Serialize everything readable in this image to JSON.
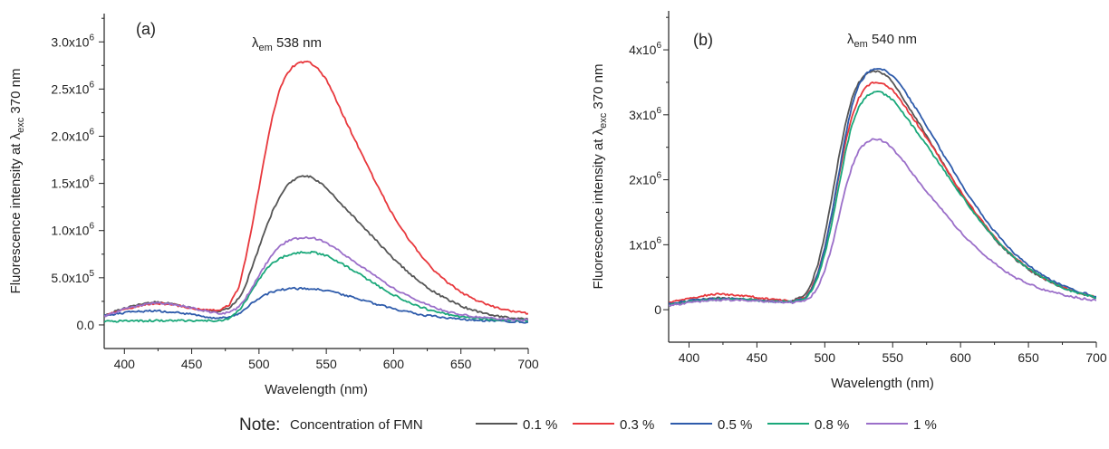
{
  "legend": {
    "note": "Note:",
    "title": "Concentration of FMN",
    "entries": [
      {
        "label": "0.1 %",
        "color": "#555555"
      },
      {
        "label": "0.3 %",
        "color": "#e8383d"
      },
      {
        "label": "0.5 %",
        "color": "#2e5bab"
      },
      {
        "label": "0.8 %",
        "color": "#1aa87a"
      },
      {
        "label": "1 %",
        "color": "#9b6fc9"
      }
    ]
  },
  "chart_data": [
    {
      "type": "line",
      "panel_label": "(a)",
      "annotation": {
        "lambda": "λ",
        "sub": "em",
        "text": " 538 nm"
      },
      "xlabel": "Wavelength (nm)",
      "ylabel": {
        "main": "Fluorescence intensity at λ",
        "sub": "exc",
        "tail": " 370 nm"
      },
      "xlim": [
        385,
        700
      ],
      "ylim": [
        -250000,
        3300000
      ],
      "xticks": [
        400,
        450,
        500,
        550,
        600,
        650,
        700
      ],
      "yticks": [
        {
          "value": 0,
          "mant": "0.0",
          "exp": ""
        },
        {
          "value": 500000,
          "mant": "5.0x10",
          "exp": "5"
        },
        {
          "value": 1000000,
          "mant": "1.0x10",
          "exp": "6"
        },
        {
          "value": 1500000,
          "mant": "1.5x10",
          "exp": "6"
        },
        {
          "value": 2000000,
          "mant": "2.0x10",
          "exp": "6"
        },
        {
          "value": 2500000,
          "mant": "2.5x10",
          "exp": "6"
        },
        {
          "value": 3000000,
          "mant": "3.0x10",
          "exp": "6"
        }
      ],
      "x": [
        385,
        400,
        420,
        430,
        440,
        450,
        460,
        470,
        478,
        485,
        490,
        495,
        500,
        505,
        510,
        515,
        520,
        525,
        530,
        535,
        538,
        540,
        545,
        550,
        555,
        560,
        570,
        580,
        590,
        600,
        610,
        620,
        630,
        640,
        650,
        660,
        670,
        680,
        690,
        700
      ],
      "series": [
        {
          "name": "0.1 %",
          "color": "#555555",
          "values": [
            100000,
            180000,
            240000,
            235000,
            210000,
            180000,
            150000,
            140000,
            180000,
            280000,
            420000,
            620000,
            820000,
            1020000,
            1200000,
            1350000,
            1460000,
            1530000,
            1570000,
            1580000,
            1575000,
            1560000,
            1510000,
            1450000,
            1380000,
            1300000,
            1150000,
            1000000,
            850000,
            700000,
            570000,
            450000,
            350000,
            270000,
            200000,
            150000,
            110000,
            85000,
            70000,
            60000
          ]
        },
        {
          "name": "0.3 %",
          "color": "#e8383d",
          "values": [
            90000,
            170000,
            225000,
            225000,
            205000,
            180000,
            160000,
            150000,
            210000,
            400000,
            700000,
            1050000,
            1450000,
            1850000,
            2200000,
            2480000,
            2650000,
            2740000,
            2780000,
            2790000,
            2780000,
            2760000,
            2700000,
            2600000,
            2460000,
            2300000,
            2000000,
            1700000,
            1420000,
            1150000,
            930000,
            740000,
            580000,
            450000,
            350000,
            270000,
            210000,
            170000,
            140000,
            120000
          ]
        },
        {
          "name": "0.5 %",
          "color": "#2e5bab",
          "values": [
            100000,
            130000,
            150000,
            145000,
            130000,
            110000,
            85000,
            70000,
            85000,
            120000,
            170000,
            230000,
            280000,
            320000,
            350000,
            370000,
            380000,
            385000,
            385000,
            385000,
            383000,
            380000,
            375000,
            365000,
            350000,
            330000,
            290000,
            250000,
            210000,
            170000,
            140000,
            110000,
            90000,
            75000,
            60000,
            50000,
            45000,
            40000,
            35000,
            30000
          ]
        },
        {
          "name": "0.8 %",
          "color": "#1aa87a",
          "values": [
            40000,
            40000,
            45000,
            45000,
            45000,
            45000,
            45000,
            45000,
            70000,
            150000,
            250000,
            370000,
            480000,
            580000,
            650000,
            700000,
            735000,
            755000,
            765000,
            770000,
            770000,
            768000,
            755000,
            735000,
            700000,
            660000,
            580000,
            490000,
            400000,
            320000,
            250000,
            190000,
            145000,
            110000,
            85000,
            70000,
            60000,
            55000,
            50000,
            45000
          ]
        },
        {
          "name": "1 %",
          "color": "#9b6fc9",
          "values": [
            90000,
            170000,
            230000,
            230000,
            210000,
            180000,
            150000,
            120000,
            130000,
            190000,
            280000,
            400000,
            520000,
            640000,
            750000,
            830000,
            880000,
            910000,
            920000,
            925000,
            925000,
            920000,
            900000,
            870000,
            830000,
            780000,
            680000,
            580000,
            480000,
            390000,
            310000,
            240000,
            185000,
            140000,
            110000,
            90000,
            75000,
            65000,
            58000,
            50000
          ]
        }
      ]
    },
    {
      "type": "line",
      "panel_label": "(b)",
      "annotation": {
        "lambda": "λ",
        "sub": "em",
        "text": " 540 nm"
      },
      "xlabel": "Wavelength (nm)",
      "ylabel": {
        "main": "Fluorescence intensity at λ",
        "sub": "exc",
        "tail": " 370 nm"
      },
      "xlim": [
        385,
        700
      ],
      "ylim": [
        -500000,
        4600000
      ],
      "xticks": [
        400,
        450,
        500,
        550,
        600,
        650,
        700
      ],
      "yticks": [
        {
          "value": 0,
          "mant": "0",
          "exp": ""
        },
        {
          "value": 1000000,
          "mant": "1x10",
          "exp": "6"
        },
        {
          "value": 2000000,
          "mant": "2x10",
          "exp": "6"
        },
        {
          "value": 3000000,
          "mant": "3x10",
          "exp": "6"
        },
        {
          "value": 4000000,
          "mant": "4x10",
          "exp": "6"
        }
      ],
      "x": [
        385,
        400,
        420,
        440,
        460,
        475,
        485,
        490,
        495,
        500,
        505,
        510,
        515,
        520,
        525,
        530,
        535,
        540,
        545,
        550,
        555,
        560,
        570,
        580,
        590,
        600,
        610,
        620,
        630,
        640,
        650,
        660,
        670,
        680,
        690,
        700
      ],
      "series": [
        {
          "name": "0.1 %",
          "color": "#555555",
          "values": [
            80000,
            130000,
            180000,
            170000,
            130000,
            120000,
            220000,
            400000,
            700000,
            1150000,
            1700000,
            2300000,
            2850000,
            3250000,
            3500000,
            3620000,
            3680000,
            3670000,
            3610000,
            3500000,
            3350000,
            3180000,
            2850000,
            2500000,
            2150000,
            1800000,
            1500000,
            1220000,
            980000,
            780000,
            620000,
            490000,
            380000,
            300000,
            240000,
            180000
          ]
        },
        {
          "name": "0.3 %",
          "color": "#e8383d",
          "values": [
            100000,
            180000,
            240000,
            220000,
            160000,
            130000,
            180000,
            320000,
            560000,
            950000,
            1450000,
            2000000,
            2550000,
            2980000,
            3260000,
            3420000,
            3500000,
            3500000,
            3460000,
            3380000,
            3250000,
            3100000,
            2800000,
            2480000,
            2150000,
            1820000,
            1520000,
            1250000,
            1000000,
            800000,
            640000,
            500000,
            390000,
            310000,
            240000,
            190000
          ]
        },
        {
          "name": "0.5 %",
          "color": "#2e5bab",
          "values": [
            90000,
            140000,
            170000,
            160000,
            130000,
            120000,
            170000,
            300000,
            550000,
            950000,
            1450000,
            2050000,
            2650000,
            3150000,
            3450000,
            3620000,
            3700000,
            3710000,
            3680000,
            3600000,
            3480000,
            3330000,
            3000000,
            2650000,
            2300000,
            1950000,
            1630000,
            1340000,
            1080000,
            860000,
            680000,
            540000,
            420000,
            330000,
            260000,
            200000
          ]
        },
        {
          "name": "0.8 %",
          "color": "#1aa87a",
          "values": [
            70000,
            120000,
            160000,
            160000,
            130000,
            120000,
            160000,
            280000,
            500000,
            850000,
            1300000,
            1850000,
            2400000,
            2850000,
            3120000,
            3270000,
            3340000,
            3350000,
            3310000,
            3230000,
            3110000,
            2960000,
            2680000,
            2380000,
            2080000,
            1780000,
            1490000,
            1230000,
            990000,
            790000,
            630000,
            500000,
            390000,
            300000,
            240000,
            180000
          ]
        },
        {
          "name": "1 %",
          "color": "#9b6fc9",
          "values": [
            60000,
            110000,
            150000,
            150000,
            120000,
            110000,
            130000,
            200000,
            350000,
            600000,
            950000,
            1400000,
            1850000,
            2200000,
            2450000,
            2570000,
            2620000,
            2620000,
            2570000,
            2480000,
            2360000,
            2230000,
            1950000,
            1690000,
            1440000,
            1200000,
            980000,
            790000,
            630000,
            500000,
            400000,
            320000,
            260000,
            210000,
            170000,
            140000
          ]
        }
      ]
    }
  ]
}
